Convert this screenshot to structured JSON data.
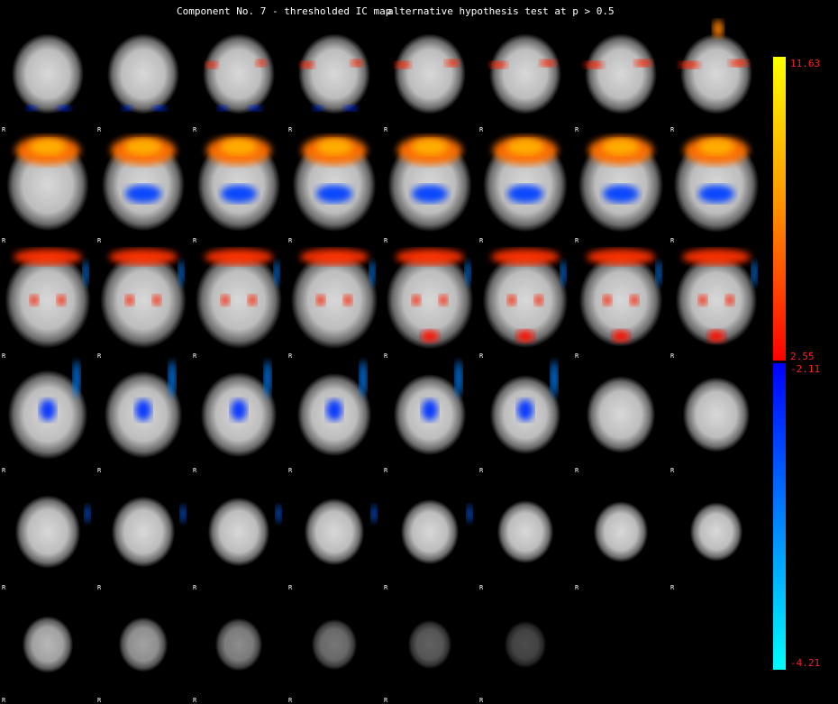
{
  "header": {
    "title": "Component No. 7 - thresholded IC map",
    "subtitle": "alternative hypothesis test at p > 0.5"
  },
  "orientation_label": "R",
  "colorbar": {
    "labels": [
      "11.63",
      "2.55",
      "-2.11",
      "-4.21"
    ]
  }
}
